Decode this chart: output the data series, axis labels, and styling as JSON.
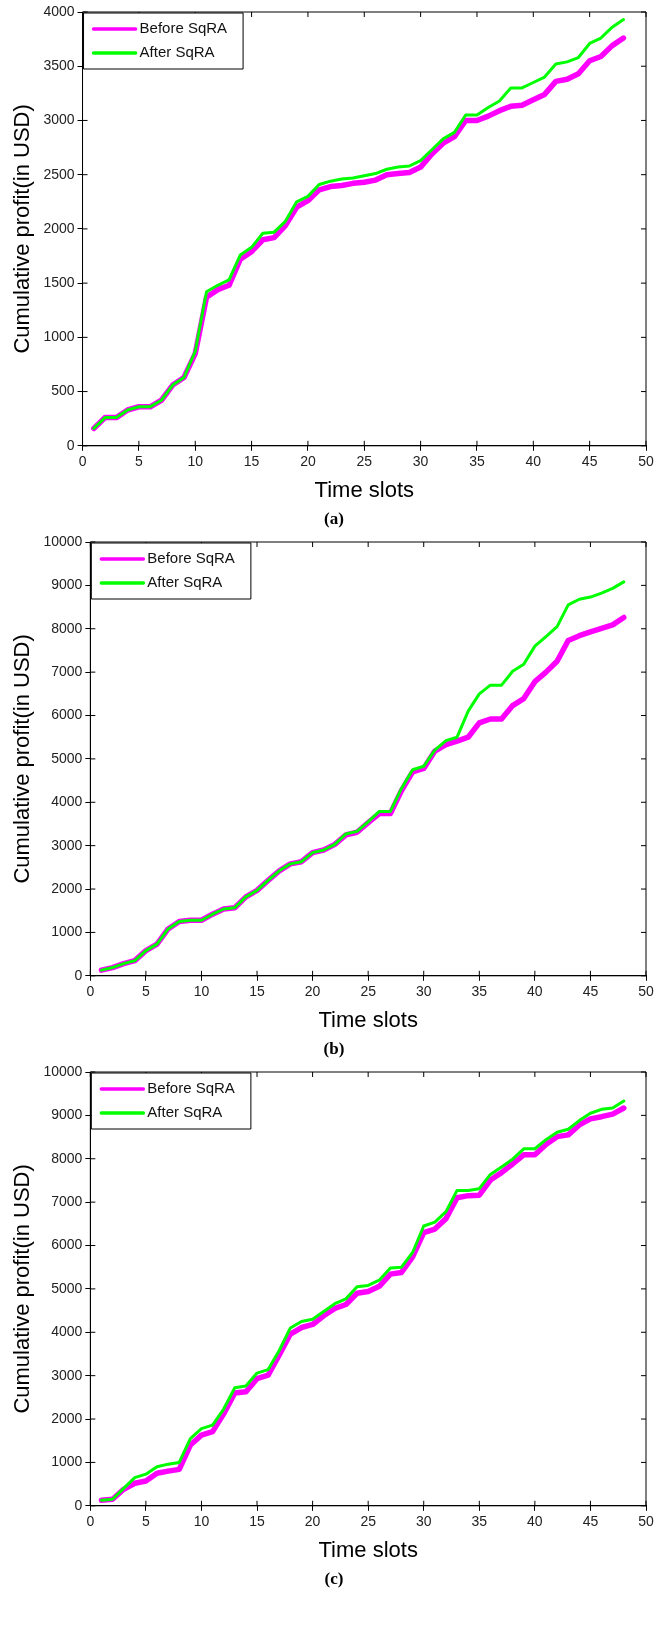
{
  "chart_data": [
    {
      "type": "line",
      "xlabel": "Time slots",
      "ylabel": "Cumulative profit(in USD)",
      "annotations": [
        "(a)"
      ],
      "legend": "top left",
      "grid": false,
      "marker": "none",
      "line_style": "solid",
      "xlim": [
        0,
        50
      ],
      "xticks": [
        0,
        5,
        10,
        15,
        20,
        25,
        30,
        35,
        40,
        45,
        50
      ],
      "ylim": [
        0,
        4000
      ],
      "yticks": [
        0,
        500,
        1000,
        1500,
        2000,
        2500,
        3000,
        3500,
        4000
      ],
      "x": [
        1,
        2,
        3,
        4,
        5,
        6,
        7,
        8,
        9,
        10,
        11,
        12,
        13,
        14,
        15,
        16,
        17,
        18,
        19,
        20,
        21,
        22,
        23,
        24,
        25,
        26,
        27,
        28,
        29,
        30,
        31,
        32,
        33,
        34,
        35,
        36,
        37,
        38,
        39,
        40,
        41,
        42,
        43,
        44,
        45,
        46,
        47,
        48
      ],
      "series": [
        {
          "name": "Before SqRA",
          "color": "#ff00ff",
          "values": [
            160,
            260,
            260,
            330,
            360,
            360,
            420,
            560,
            630,
            850,
            1370,
            1440,
            1480,
            1720,
            1790,
            1900,
            1920,
            2030,
            2200,
            2260,
            2360,
            2390,
            2400,
            2420,
            2430,
            2450,
            2500,
            2510,
            2520,
            2570,
            2690,
            2790,
            2850,
            3000,
            3000,
            3040,
            3090,
            3130,
            3140,
            3190,
            3240,
            3360,
            3380,
            3430,
            3550,
            3590,
            3690,
            3760
          ]
        },
        {
          "name": "After SqRA",
          "color": "#00ff00",
          "values": [
            160,
            260,
            260,
            330,
            360,
            360,
            420,
            560,
            630,
            870,
            1420,
            1480,
            1530,
            1760,
            1830,
            1960,
            1970,
            2070,
            2250,
            2300,
            2410,
            2440,
            2460,
            2470,
            2490,
            2510,
            2550,
            2570,
            2580,
            2630,
            2730,
            2830,
            2890,
            3050,
            3050,
            3120,
            3180,
            3300,
            3300,
            3350,
            3400,
            3520,
            3540,
            3580,
            3710,
            3760,
            3860,
            3930
          ]
        }
      ]
    },
    {
      "type": "line",
      "xlabel": "Time slots",
      "ylabel": "Cumulative profit(in USD)",
      "annotations": [
        "(b)"
      ],
      "legend": "top left",
      "grid": false,
      "marker": "none",
      "line_style": "solid",
      "xlim": [
        0,
        50
      ],
      "xticks": [
        0,
        5,
        10,
        15,
        20,
        25,
        30,
        35,
        40,
        45,
        50
      ],
      "ylim": [
        0,
        10000
      ],
      "yticks": [
        0,
        1000,
        2000,
        3000,
        4000,
        5000,
        6000,
        7000,
        8000,
        9000,
        10000
      ],
      "x": [
        1,
        2,
        3,
        4,
        5,
        6,
        7,
        8,
        9,
        10,
        11,
        12,
        13,
        14,
        15,
        16,
        17,
        18,
        19,
        20,
        21,
        22,
        23,
        24,
        25,
        26,
        27,
        28,
        29,
        30,
        31,
        32,
        33,
        34,
        35,
        36,
        37,
        38,
        39,
        40,
        41,
        42,
        43,
        44,
        45,
        46,
        47,
        48
      ],
      "series": [
        {
          "name": "Before SqRA",
          "color": "#ff00ff",
          "values": [
            130,
            190,
            280,
            350,
            580,
            730,
            1080,
            1250,
            1280,
            1280,
            1420,
            1540,
            1570,
            1820,
            1970,
            2200,
            2420,
            2580,
            2630,
            2840,
            2900,
            3030,
            3250,
            3310,
            3530,
            3740,
            3740,
            4270,
            4700,
            4780,
            5180,
            5330,
            5410,
            5500,
            5830,
            5920,
            5920,
            6230,
            6390,
            6780,
            7000,
            7250,
            7730,
            7840,
            7930,
            8010,
            8090,
            8260
          ]
        },
        {
          "name": "After SqRA",
          "color": "#00ff00",
          "values": [
            130,
            190,
            280,
            350,
            580,
            730,
            1080,
            1250,
            1280,
            1280,
            1420,
            1540,
            1570,
            1820,
            1970,
            2200,
            2420,
            2580,
            2630,
            2840,
            2900,
            3030,
            3270,
            3330,
            3550,
            3790,
            3790,
            4320,
            4750,
            4830,
            5200,
            5420,
            5500,
            6100,
            6500,
            6700,
            6700,
            7020,
            7180,
            7600,
            7820,
            8050,
            8550,
            8680,
            8730,
            8820,
            8930,
            9080
          ]
        }
      ]
    },
    {
      "type": "line",
      "xlabel": "Time slots",
      "ylabel": "Cumulative profit(in USD)",
      "annotations": [
        "(c)"
      ],
      "legend": "top left",
      "grid": false,
      "marker": "none",
      "line_style": "solid",
      "xlim": [
        0,
        50
      ],
      "xticks": [
        0,
        5,
        10,
        15,
        20,
        25,
        30,
        35,
        40,
        45,
        50
      ],
      "ylim": [
        0,
        10000
      ],
      "yticks": [
        0,
        1000,
        2000,
        3000,
        4000,
        5000,
        6000,
        7000,
        8000,
        9000,
        10000
      ],
      "x": [
        1,
        2,
        3,
        4,
        5,
        6,
        7,
        8,
        9,
        10,
        11,
        12,
        13,
        14,
        15,
        16,
        17,
        18,
        19,
        20,
        21,
        22,
        23,
        24,
        25,
        26,
        27,
        28,
        29,
        30,
        31,
        32,
        33,
        34,
        35,
        36,
        37,
        38,
        39,
        40,
        41,
        42,
        43,
        44,
        45,
        46,
        47,
        48
      ],
      "series": [
        {
          "name": "Before SqRA",
          "color": "#ff00ff",
          "values": [
            130,
            150,
            380,
            520,
            570,
            750,
            800,
            840,
            1400,
            1630,
            1710,
            2120,
            2600,
            2630,
            2930,
            3010,
            3480,
            3960,
            4110,
            4180,
            4380,
            4550,
            4640,
            4900,
            4940,
            5060,
            5340,
            5380,
            5740,
            6300,
            6380,
            6620,
            7100,
            7150,
            7160,
            7510,
            7680,
            7880,
            8090,
            8090,
            8330,
            8510,
            8550,
            8780,
            8920,
            8970,
            9030,
            9170
          ]
        },
        {
          "name": "After SqRA",
          "color": "#00ff00",
          "values": [
            130,
            150,
            400,
            650,
            730,
            900,
            960,
            1000,
            1550,
            1780,
            1860,
            2230,
            2720,
            2760,
            3060,
            3140,
            3580,
            4100,
            4250,
            4300,
            4480,
            4660,
            4770,
            5050,
            5080,
            5200,
            5480,
            5500,
            5840,
            6450,
            6540,
            6780,
            7270,
            7270,
            7310,
            7640,
            7810,
            7990,
            8230,
            8230,
            8440,
            8610,
            8680,
            8880,
            9050,
            9140,
            9170,
            9330
          ]
        }
      ]
    }
  ]
}
